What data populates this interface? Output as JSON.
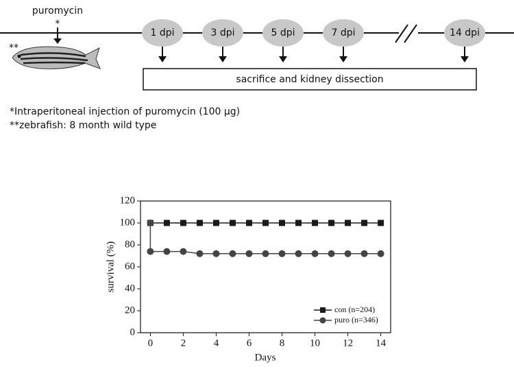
{
  "diagram": {
    "injection_label": "puromycin",
    "injection_mark": "*",
    "fish_mark": "**",
    "timepoints": [
      "1 dpi",
      "3 dpi",
      "5 dpi",
      "7 dpi",
      "14 dpi"
    ],
    "box_label": "sacrifice and kidney dissection",
    "notes": [
      "*Intraperitoneal injection of puromycin (100 μg)",
      "**zebrafish: 8 month wild type"
    ]
  },
  "chart_data": {
    "type": "line",
    "xlabel": "Days",
    "ylabel": "survival (%)",
    "xlim": [
      -0.6,
      14.6
    ],
    "xticks": [
      0,
      2,
      4,
      6,
      8,
      10,
      12,
      14
    ],
    "ylim": [
      0,
      120
    ],
    "yticks": [
      0,
      20,
      40,
      60,
      80,
      100,
      120
    ],
    "legend": "lower right",
    "series": [
      {
        "name": "con (n=204)",
        "color": "#1a1a1a",
        "marker": "square",
        "x": [
          0,
          1,
          2,
          3,
          4,
          5,
          6,
          7,
          8,
          9,
          10,
          11,
          12,
          13,
          14
        ],
        "values": [
          100,
          100,
          100,
          100,
          100,
          100,
          100,
          100,
          100,
          100,
          100,
          100,
          100,
          100,
          100
        ]
      },
      {
        "name": "puro (n=346)",
        "color": "#444444",
        "marker": "circle",
        "x": [
          0,
          0,
          1,
          2,
          3,
          4,
          5,
          6,
          7,
          8,
          9,
          10,
          11,
          12,
          13,
          14
        ],
        "values": [
          100,
          74,
          74,
          74,
          72,
          72,
          72,
          72,
          72,
          72,
          72,
          72,
          72,
          72,
          72,
          72
        ]
      }
    ]
  }
}
